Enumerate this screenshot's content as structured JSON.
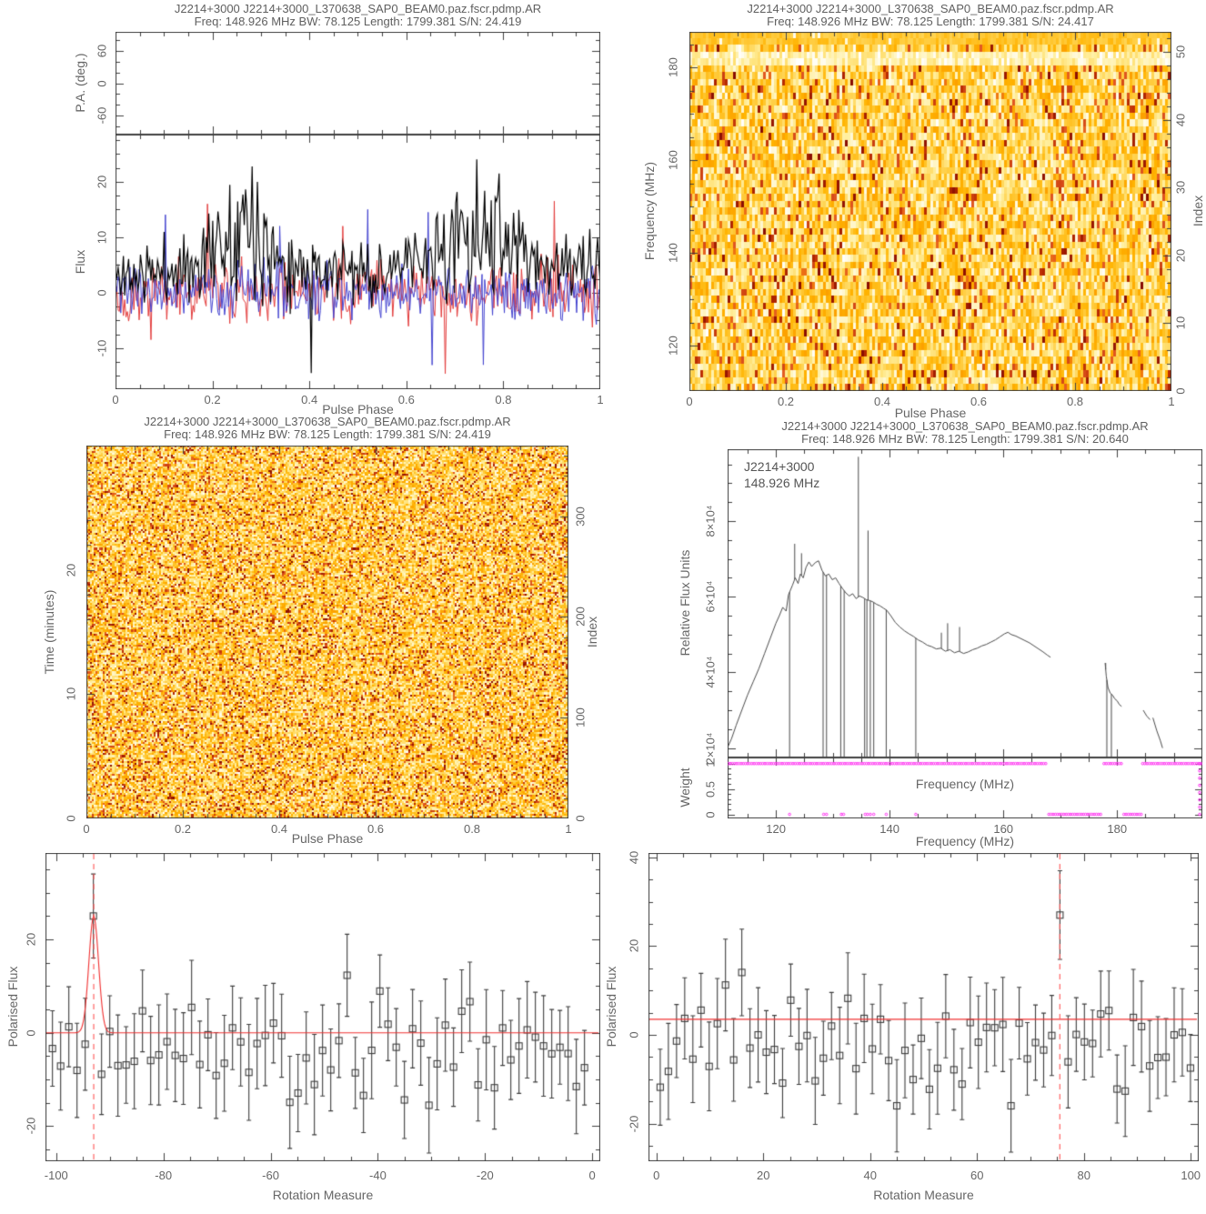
{
  "colors": {
    "background": "#ffffff",
    "frame": "#3f3f3f",
    "text": "#666666",
    "curve_gray": "#4a4a4a",
    "marker_gray": "#3d3d3d",
    "red_line": "#f03030",
    "red_dashed": "#ff5555",
    "magenta": "#ff2bf0",
    "series_black": "#000000",
    "series_red": "#e23b3b",
    "series_blue": "#4343cf",
    "heat_palette": [
      "#1a0000",
      "#7a0403",
      "#b92b00",
      "#e25822",
      "#f98e00",
      "#ffb300",
      "#ffd24d",
      "#ffef9e",
      "#ffffff"
    ]
  },
  "chart_data": [
    {
      "id": "polarization-profile",
      "type": "line",
      "title_line1": "J2214+3000 J2214+3000_L370638_SAP0_BEAM0.paz.fscr.pdmp.AR",
      "title_line2": "Freq: 148.926 MHz BW: 78.125 Length: 1799.381 S/N: 24.419",
      "xlabel": "Pulse Phase",
      "pa_axis": {
        "ylabel": "P.A. (deg.)",
        "yticks": [
          60,
          0,
          -60
        ],
        "ytick_labels": [
          "60",
          "0",
          "-60"
        ],
        "ylim": [
          -95,
          95
        ],
        "minor_y": 20,
        "data_points": []
      },
      "flux_axis": {
        "ylabel": "Flux",
        "yticks": [
          20,
          10,
          0,
          -10
        ],
        "ytick_labels": [
          "20",
          "10",
          "0",
          "-10"
        ],
        "ylim": [
          -17.4,
          28.5
        ],
        "minor_y": 2.5,
        "xticks": [
          0,
          0.2,
          0.4,
          0.6,
          0.8,
          1
        ],
        "xtick_labels": [
          "0",
          "0.2",
          "0.4",
          "0.6",
          "0.8",
          "1"
        ],
        "xlim": [
          0,
          1
        ],
        "minor_x": 0.05,
        "n_bins": 370,
        "series": [
          {
            "name": "total-intensity",
            "color_key": "series_black",
            "seed": 11,
            "noise_sigma": 2.6,
            "envelope": [
              [
                0,
                5
              ],
              [
                0.05,
                6
              ],
              [
                0.1,
                7
              ],
              [
                0.15,
                8
              ],
              [
                0.2,
                13
              ],
              [
                0.24,
                18
              ],
              [
                0.27,
                27
              ],
              [
                0.3,
                17
              ],
              [
                0.33,
                13
              ],
              [
                0.38,
                9
              ],
              [
                0.45,
                7
              ],
              [
                0.55,
                7
              ],
              [
                0.62,
                9
              ],
              [
                0.66,
                12
              ],
              [
                0.7,
                17
              ],
              [
                0.74,
                22
              ],
              [
                0.78,
                21
              ],
              [
                0.82,
                15
              ],
              [
                0.86,
                11
              ],
              [
                0.9,
                9
              ],
              [
                0.95,
                8
              ],
              [
                1,
                7
              ]
            ],
            "spikes": [
              [
                0.405,
                -14.5
              ]
            ]
          },
          {
            "name": "linear-polarization",
            "color_key": "series_red",
            "seed": 22,
            "noise_sigma": 3.1,
            "envelope": [],
            "spikes": [
              [
                0.19,
                16
              ],
              [
                0.47,
                12
              ],
              [
                0.905,
                16.5
              ]
            ]
          },
          {
            "name": "circular-polarization",
            "color_key": "series_blue",
            "seed": 33,
            "noise_sigma": 3.1,
            "envelope": [],
            "spikes": [
              [
                0.34,
                12
              ],
              [
                0.52,
                15
              ],
              [
                0.645,
                14.5
              ],
              [
                0.76,
                -13
              ]
            ]
          }
        ]
      }
    },
    {
      "id": "phase-frequency-heatmap",
      "type": "heatmap",
      "title_line1": "J2214+3000 J2214+3000_L370638_SAP0_BEAM0.paz.fscr.pdmp.AR",
      "title_line2": "Freq: 148.926 MHz BW: 78.125 Length: 1799.381 S/N: 24.417",
      "xlabel": "Pulse Phase",
      "ylabel": "Frequency (MHz)",
      "y2label": "Index",
      "xticks": [
        0,
        0.2,
        0.4,
        0.6,
        0.8,
        1
      ],
      "xtick_labels": [
        "0",
        "0.2",
        "0.4",
        "0.6",
        "0.8",
        "1"
      ],
      "xlim": [
        0,
        1
      ],
      "minor_x": 0.05,
      "yticks": [
        180,
        160,
        140,
        120
      ],
      "ytick_labels": [
        "180",
        "160",
        "140",
        "120"
      ],
      "ylim": [
        110.2,
        187.7
      ],
      "minor_y": 5,
      "y2ticks": [
        50,
        40,
        30,
        20,
        10,
        0
      ],
      "y2tick_labels": [
        "50",
        "40",
        "30",
        "20",
        "10",
        "0"
      ],
      "y2lim": [
        0,
        53
      ],
      "minor_y2": 2,
      "heat": {
        "cols": 176,
        "rows": 53,
        "seed": 7,
        "dark_density": 0.1,
        "bright_rows": [
          3,
          4
        ],
        "top_uniform_rows": 2
      }
    },
    {
      "id": "phase-time-heatmap",
      "type": "heatmap",
      "title_line1": "J2214+3000 J2214+3000_L370638_SAP0_BEAM0.paz.fscr.pdmp.AR",
      "title_line2": "Freq: 148.926 MHz BW: 78.125 Length: 1799.381 S/N: 24.419",
      "xlabel": "Pulse Phase",
      "ylabel": "Time (minutes)",
      "y2label": "Index",
      "xticks": [
        0,
        0.2,
        0.4,
        0.6,
        0.8,
        1
      ],
      "xtick_labels": [
        "0",
        "0.2",
        "0.4",
        "0.6",
        "0.8",
        "1"
      ],
      "xlim": [
        0,
        1
      ],
      "minor_x": 0.05,
      "yticks": [
        20,
        10,
        0
      ],
      "ytick_labels": [
        "20",
        "10",
        "0"
      ],
      "ylim": [
        0,
        30
      ],
      "minor_y": 2,
      "y2ticks": [
        300,
        200,
        100,
        0
      ],
      "y2tick_labels": [
        "300",
        "200",
        "100",
        "0"
      ],
      "y2lim": [
        0,
        370
      ],
      "minor_y2": 20,
      "heat": {
        "cols": 256,
        "rows": 196,
        "seed": 91,
        "dark_density": 0.16,
        "bright_rows": [],
        "top_uniform_rows": 0
      }
    },
    {
      "id": "bandpass",
      "type": "line",
      "title_line1": "J2214+3000 J2214+3000_L370638_SAP0_BEAM0.paz.fscr.pdmp.AR",
      "title_line2": "Freq: 148.926 MHz BW: 78.125 Length: 1799.381 S/N: 20.640",
      "annotation_line1": "J2214+3000",
      "annotation_line2": "148.926 MHz",
      "ylabel": "Relative Flux Units",
      "yticks": [
        8,
        6,
        4,
        2
      ],
      "ytick_labels": [
        "8×10⁴",
        "6×10⁴",
        "4×10⁴",
        "2×10⁴"
      ],
      "ylim": [
        1.75,
        9.9
      ],
      "minor_y": 0.5,
      "xlabel": "Frequency (MHz)",
      "xticks": [
        120,
        140,
        160,
        180
      ],
      "xtick_labels": [
        "120",
        "140",
        "160",
        "180"
      ],
      "xlim": [
        111.5,
        195
      ],
      "minor_x": 5,
      "weight_axis": {
        "ylabel": "Weight",
        "yticks": [
          1,
          0.5,
          0
        ],
        "ytick_labels": [
          "1",
          "0.5",
          "0"
        ],
        "ylim": [
          -0.08,
          1.12
        ],
        "minor_y": 0.1,
        "inner_xlabel": "Frequency (MHz)",
        "one_ranges": [
          [
            111.6,
            167.8
          ],
          [
            177.7,
            180.9
          ],
          [
            184.5,
            195.0
          ]
        ],
        "zero_ranges": [
          [
            168.0,
            177.4
          ],
          [
            181.2,
            184.3
          ]
        ],
        "zero_singles": [
          122.4,
          128.4,
          128.9,
          131.5,
          131.9,
          135.7,
          136.1,
          136.6,
          137.2,
          139.4,
          144.6
        ],
        "right_edge_column": true
      },
      "curve_segments": [
        [
          [
            111.6,
            2.05
          ],
          [
            112.2,
            2.25
          ],
          [
            113,
            2.6
          ],
          [
            114,
            3.0
          ],
          [
            115,
            3.4
          ],
          [
            116,
            3.75
          ],
          [
            117,
            4.1
          ],
          [
            118,
            4.5
          ],
          [
            119,
            4.9
          ],
          [
            120,
            5.3
          ],
          [
            120.6,
            5.5
          ],
          [
            121.2,
            5.72
          ],
          [
            121.8,
            5.62
          ],
          [
            122.2,
            6.05
          ],
          [
            122.9,
            6.3
          ],
          [
            123.4,
            6.5
          ],
          [
            123.9,
            6.35
          ],
          [
            124.3,
            6.6
          ],
          [
            124.8,
            6.5
          ],
          [
            125.3,
            6.78
          ],
          [
            125.8,
            6.92
          ],
          [
            126.3,
            6.8
          ],
          [
            126.9,
            6.9
          ],
          [
            127.5,
            6.95
          ],
          [
            128.1,
            6.7
          ],
          [
            128.7,
            6.55
          ],
          [
            129.3,
            6.6
          ],
          [
            129.9,
            6.45
          ],
          [
            130.5,
            6.5
          ],
          [
            131.1,
            6.35
          ],
          [
            131.7,
            6.22
          ],
          [
            132.3,
            6.1
          ],
          [
            132.9,
            6.02
          ],
          [
            133.5,
            6.08
          ],
          [
            134.1,
            5.95
          ],
          [
            134.7,
            6.02
          ],
          [
            135.3,
            5.98
          ],
          [
            135.9,
            5.92
          ],
          [
            136.5,
            5.9
          ],
          [
            137.1,
            5.86
          ],
          [
            137.7,
            5.8
          ],
          [
            138.3,
            5.76
          ],
          [
            138.9,
            5.7
          ],
          [
            139.5,
            5.64
          ],
          [
            140.2,
            5.5
          ],
          [
            141,
            5.32
          ],
          [
            141.8,
            5.2
          ],
          [
            142.6,
            5.1
          ],
          [
            143.4,
            5.02
          ],
          [
            144.2,
            4.95
          ],
          [
            145,
            4.86
          ],
          [
            145.8,
            4.8
          ],
          [
            146.6,
            4.72
          ],
          [
            147.4,
            4.68
          ],
          [
            148.2,
            4.62
          ],
          [
            149,
            4.64
          ],
          [
            149.8,
            4.56
          ],
          [
            150.6,
            4.6
          ],
          [
            151.4,
            4.52
          ],
          [
            152.2,
            4.56
          ],
          [
            153,
            4.5
          ],
          [
            153.8,
            4.54
          ],
          [
            154.6,
            4.6
          ],
          [
            155.4,
            4.64
          ],
          [
            156.2,
            4.7
          ],
          [
            157,
            4.74
          ],
          [
            157.8,
            4.8
          ],
          [
            158.6,
            4.86
          ],
          [
            159.4,
            4.94
          ],
          [
            160.2,
            5.02
          ],
          [
            160.8,
            5.06
          ],
          [
            161.4,
            5.0
          ],
          [
            162.2,
            4.96
          ],
          [
            163,
            4.9
          ],
          [
            163.8,
            4.84
          ],
          [
            164.6,
            4.78
          ],
          [
            165.4,
            4.7
          ],
          [
            166.2,
            4.62
          ],
          [
            167,
            4.54
          ],
          [
            167.7,
            4.46
          ],
          [
            168.3,
            4.4
          ]
        ],
        [
          [
            177.9,
            4.25
          ],
          [
            178.1,
            3.9
          ],
          [
            178.4,
            3.6
          ],
          [
            178.8,
            3.45
          ],
          [
            179.2,
            3.4
          ],
          [
            179.6,
            3.3
          ],
          [
            180,
            3.25
          ],
          [
            180.4,
            3.15
          ],
          [
            180.8,
            3.1
          ]
        ],
        [
          [
            184.6,
            3.0
          ],
          [
            185.2,
            2.85
          ],
          [
            185.8,
            2.75
          ]
        ],
        [
          [
            186.3,
            2.8
          ],
          [
            187,
            2.45
          ],
          [
            187.6,
            2.2
          ],
          [
            188,
            2.0
          ]
        ]
      ],
      "spikes": [
        [
          123.3,
          7.4
        ],
        [
          124.5,
          7.15
        ],
        [
          134.5,
          9.7
        ],
        [
          136.2,
          7.75
        ],
        [
          149.1,
          5.05
        ],
        [
          150.2,
          5.3
        ],
        [
          152.3,
          5.2
        ],
        [
          178.0,
          4.25
        ]
      ],
      "dropouts": [
        122.4,
        128.3,
        128.9,
        131.4,
        132.0,
        135.6,
        136.0,
        136.6,
        137.2,
        139.4,
        144.6,
        178.2,
        179.0,
        185.9
      ]
    },
    {
      "id": "rm-scan-negative",
      "type": "scatter",
      "xlabel": "Rotation Measure",
      "ylabel": "Polarised Flux",
      "xticks": [
        -100,
        -80,
        -60,
        -40,
        -20,
        0
      ],
      "xtick_labels": [
        "-100",
        "-80",
        "-60",
        "-40",
        "-20",
        "0"
      ],
      "xlim": [
        -102,
        1.5
      ],
      "minor_x": 5,
      "yticks": [
        20,
        0,
        -20
      ],
      "ytick_labels": [
        "20",
        "0",
        "-20"
      ],
      "ylim": [
        -27.5,
        38.5
      ],
      "minor_y": 5,
      "n_points": 66,
      "rm_start": -100.7,
      "rm_step": 1.527,
      "seed": 17,
      "noise_mean": -2,
      "noise_sigma": 8.5,
      "err_base": 7.5,
      "err_rand": 3.5,
      "baseline": 0,
      "peak": {
        "rm": -93,
        "value": 25,
        "err": 9,
        "gauss_amp": 25,
        "gauss_sigma": 0.9
      },
      "vline": -93
    },
    {
      "id": "rm-scan-positive",
      "type": "scatter",
      "xlabel": "Rotation Measure",
      "ylabel": "Polarised Flux",
      "xticks": [
        0,
        20,
        40,
        60,
        80,
        100
      ],
      "xtick_labels": [
        "0",
        "20",
        "40",
        "60",
        "80",
        "100"
      ],
      "xlim": [
        -1.5,
        101.5
      ],
      "minor_x": 5,
      "yticks": [
        40,
        20,
        0,
        -20
      ],
      "ytick_labels": [
        "40",
        "20",
        "0",
        "-20"
      ],
      "ylim": [
        -28.5,
        41
      ],
      "minor_y": 5,
      "n_points": 66,
      "rm_start": 0.7,
      "rm_step": 1.527,
      "seed": 23,
      "noise_mean": -2,
      "noise_sigma": 8.5,
      "err_base": 7.5,
      "err_rand": 3.5,
      "baseline": 3.5,
      "peak": {
        "rm": 75.3,
        "value": 27,
        "err": 10,
        "gauss_amp": 0,
        "gauss_sigma": 1
      },
      "vline": 75.5
    }
  ]
}
